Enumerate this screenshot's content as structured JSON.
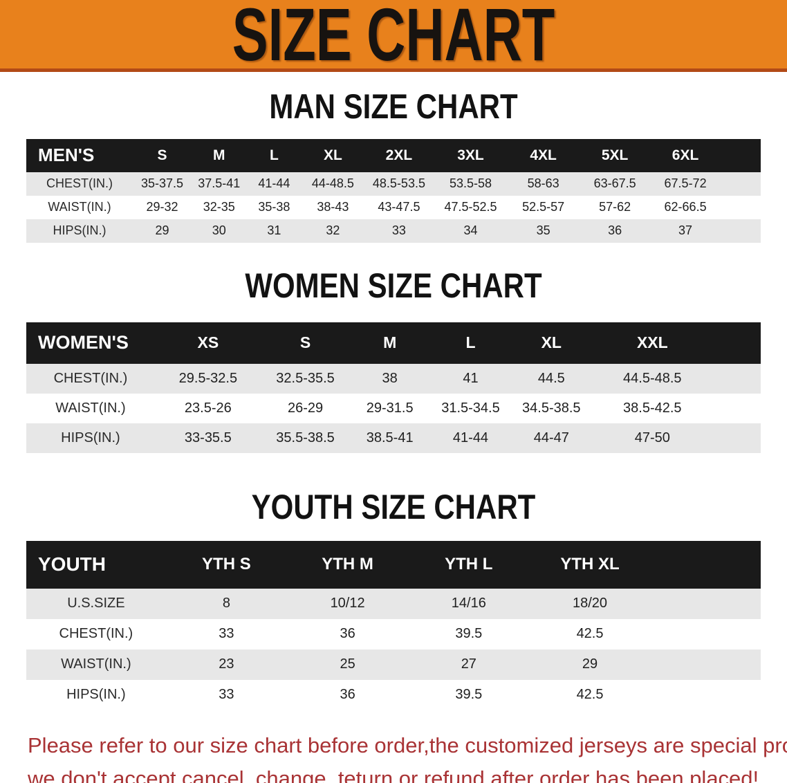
{
  "banner": {
    "title": "SIZE CHART"
  },
  "colors": {
    "banner_bg": "#e8811c",
    "banner_edge": "#b24a16",
    "header_bar": "#1a1a1a",
    "row_stripe": "#e7e7e7",
    "disclaimer_text": "#a93335"
  },
  "sections": {
    "men": {
      "heading": "MAN SIZE CHART",
      "table": {
        "header": [
          "MEN'S",
          "S",
          "M",
          "L",
          "XL",
          "2XL",
          "3XL",
          "4XL",
          "5XL",
          "6XL"
        ],
        "rows": [
          [
            "CHEST(IN.)",
            "35-37.5",
            "37.5-41",
            "41-44",
            "44-48.5",
            "48.5-53.5",
            "53.5-58",
            "58-63",
            "63-67.5",
            "67.5-72"
          ],
          [
            "WAIST(IN.)",
            "29-32",
            "32-35",
            "35-38",
            "38-43",
            "43-47.5",
            "47.5-52.5",
            "52.5-57",
            "57-62",
            "62-66.5"
          ],
          [
            "HIPS(IN.)",
            "29",
            "30",
            "31",
            "32",
            "33",
            "34",
            "35",
            "36",
            "37"
          ]
        ]
      }
    },
    "women": {
      "heading": "WOMEN SIZE CHART",
      "table": {
        "header": [
          "WOMEN'S",
          "XS",
          "S",
          "M",
          "L",
          "XL",
          "XXL"
        ],
        "rows": [
          [
            "CHEST(IN.)",
            "29.5-32.5",
            "32.5-35.5",
            "38",
            "41",
            "44.5",
            "44.5-48.5"
          ],
          [
            "WAIST(IN.)",
            "23.5-26",
            "26-29",
            "29-31.5",
            "31.5-34.5",
            "34.5-38.5",
            "38.5-42.5"
          ],
          [
            "HIPS(IN.)",
            "33-35.5",
            "35.5-38.5",
            "38.5-41",
            "41-44",
            "44-47",
            "47-50"
          ]
        ]
      }
    },
    "youth": {
      "heading": "YOUTH SIZE CHART",
      "table": {
        "header": [
          "YOUTH",
          "YTH S",
          "YTH M",
          "YTH L",
          "YTH XL"
        ],
        "rows": [
          [
            "U.S.SIZE",
            "8",
            "10/12",
            "14/16",
            "18/20"
          ],
          [
            "CHEST(IN.)",
            "33",
            "36",
            "39.5",
            "42.5"
          ],
          [
            "WAIST(IN.)",
            "23",
            "25",
            "27",
            "29"
          ],
          [
            "HIPS(IN.)",
            "33",
            "36",
            "39.5",
            "42.5"
          ]
        ]
      }
    }
  },
  "disclaimer": {
    "line1": "Please refer to our size chart before order,the customized jerseys are special products,",
    "line2": "we don't accept cancel, change, teturn or refund after order has been placed!"
  }
}
